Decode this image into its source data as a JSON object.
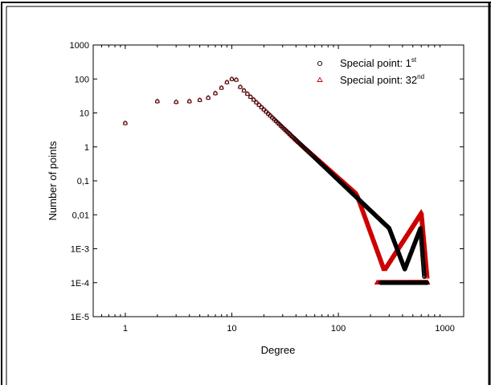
{
  "chart_data": {
    "type": "scatter",
    "xscale": "log",
    "yscale": "log",
    "xlim": [
      0.5,
      1500
    ],
    "ylim": [
      1e-05,
      1000
    ],
    "xlabel": "Degree",
    "ylabel": "Number of points",
    "x_ticks": [
      {
        "v": 1,
        "label": "1"
      },
      {
        "v": 10,
        "label": "10"
      },
      {
        "v": 100,
        "label": "100"
      },
      {
        "v": 1000,
        "label": "1000"
      }
    ],
    "y_ticks": [
      {
        "v": 1000,
        "label": "1000"
      },
      {
        "v": 100,
        "label": "100"
      },
      {
        "v": 10,
        "label": "10"
      },
      {
        "v": 1,
        "label": "1"
      },
      {
        "v": 0.1,
        "label": "0,1"
      },
      {
        "v": 0.01,
        "label": "0,01"
      },
      {
        "v": 0.001,
        "label": "1E-3"
      },
      {
        "v": 0.0001,
        "label": "1E-4"
      },
      {
        "v": 1e-05,
        "label": "1E-5"
      }
    ],
    "legend": {
      "position": "top-right",
      "entries": [
        {
          "text": "Special point: 1",
          "sup": "st",
          "marker": "circle",
          "color": "#000000"
        },
        {
          "text": "Special point: 32",
          "sup": "nd",
          "marker": "triangle",
          "color": "#cc0000"
        }
      ]
    },
    "series": [
      {
        "marker": "circle",
        "color": "#000000",
        "segments": [
          {
            "x_start": 1,
            "x_end": 1,
            "y": [
              5
            ]
          },
          {
            "x_start": 2,
            "x_end": 9,
            "y": [
              22,
              21,
              22,
              24,
              28,
              38,
              55,
              80
            ]
          },
          {
            "x_start": 10,
            "x_end": 11,
            "y": [
              100,
              95
            ]
          },
          {
            "x_start": 12,
            "x_end": 40,
            "shape": "powerlaw",
            "y_start": 58,
            "y_end": 1.6
          },
          {
            "x_start": 40,
            "x_end": 300,
            "shape": "powerlaw",
            "y_start": 1.6,
            "y_end": 0.004
          },
          {
            "x_start": 300,
            "x_end": 420,
            "shape": "powerlaw",
            "y_start": 0.004,
            "y_end": 0.00025
          },
          {
            "x_start": 420,
            "x_end": 590,
            "shape": "powerlaw",
            "y_start": 0.00025,
            "y_end": 0.004
          },
          {
            "x_start": 590,
            "x_end": 640,
            "shape": "powerlaw",
            "y_start": 0.004,
            "y_end": 0.00015
          }
        ],
        "floor": {
          "y": 0.0001,
          "x_start": 250,
          "x_end": 680
        }
      },
      {
        "marker": "triangle",
        "color": "#cc0000",
        "segments": [
          {
            "x_start": 1,
            "x_end": 1,
            "y": [
              5
            ]
          },
          {
            "x_start": 2,
            "x_end": 9,
            "y": [
              22,
              21,
              22,
              24,
              28,
              38,
              55,
              80
            ]
          },
          {
            "x_start": 10,
            "x_end": 11,
            "y": [
              100,
              95
            ]
          },
          {
            "x_start": 12,
            "x_end": 40,
            "shape": "powerlaw",
            "y_start": 58,
            "y_end": 1.6
          },
          {
            "x_start": 40,
            "x_end": 150,
            "shape": "powerlaw",
            "y_start": 1.6,
            "y_end": 0.04
          },
          {
            "x_start": 150,
            "x_end": 270,
            "shape": "powerlaw",
            "y_start": 0.04,
            "y_end": 0.00025
          },
          {
            "x_start": 270,
            "x_end": 600,
            "shape": "powerlaw",
            "y_start": 0.00025,
            "y_end": 0.012
          },
          {
            "x_start": 600,
            "x_end": 680,
            "shape": "powerlaw",
            "y_start": 0.012,
            "y_end": 0.00015
          }
        ],
        "floor": {
          "y": 0.0001,
          "x_start": 230,
          "x_end": 690
        }
      }
    ]
  }
}
